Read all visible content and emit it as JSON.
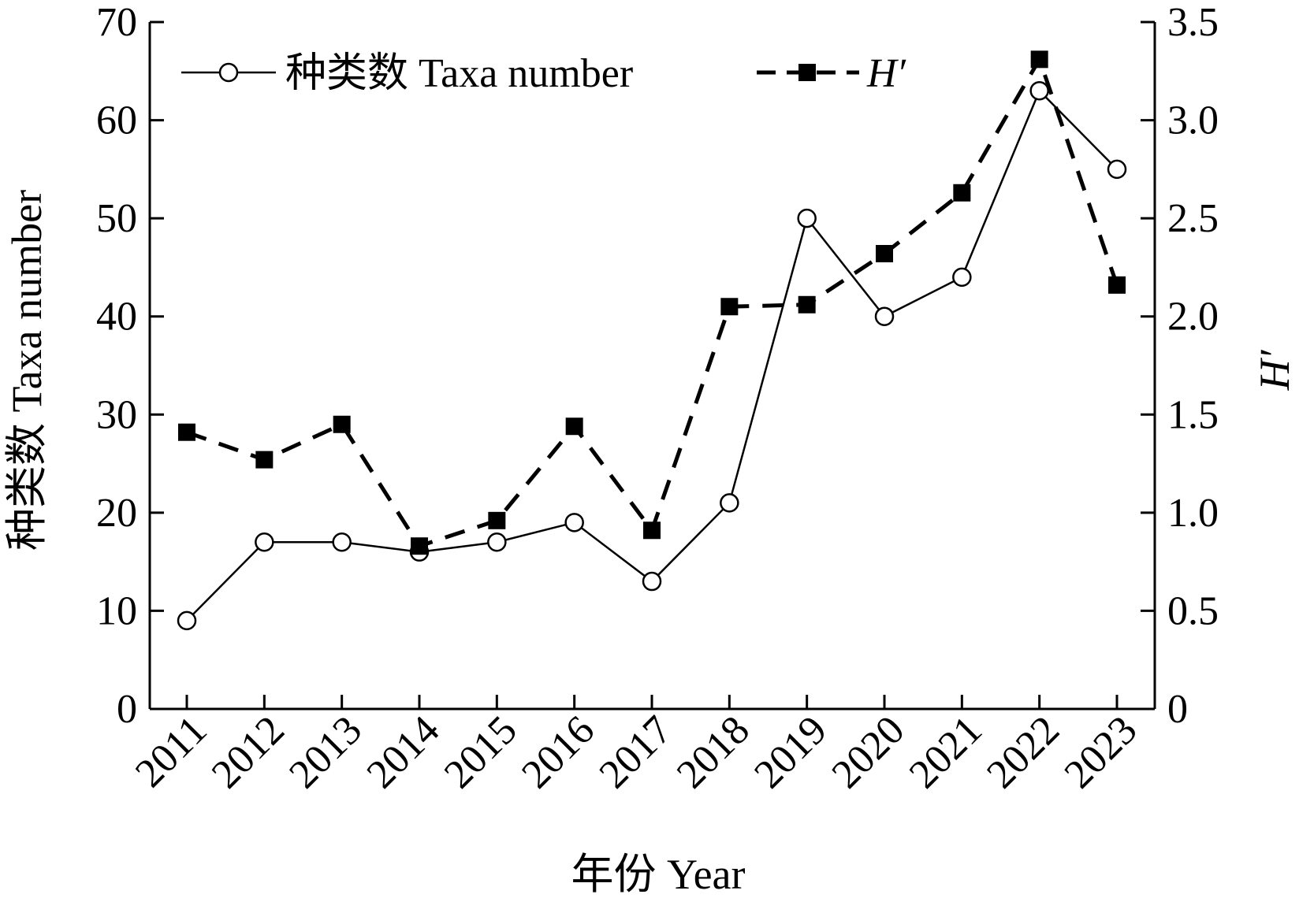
{
  "chart_data": {
    "type": "line",
    "x": [
      "2011",
      "2012",
      "2013",
      "2014",
      "2015",
      "2016",
      "2017",
      "2018",
      "2019",
      "2020",
      "2021",
      "2022",
      "2023"
    ],
    "series": [
      {
        "name": "种类数 Taxa number",
        "axis": "left",
        "style": "solid-line-open-circle",
        "values": [
          9,
          17,
          17,
          16,
          17,
          19,
          13,
          21,
          50,
          40,
          44,
          63,
          55
        ]
      },
      {
        "name": "H′",
        "axis": "right",
        "style": "dashed-line-filled-square",
        "values": [
          1.41,
          1.27,
          1.45,
          0.83,
          0.96,
          1.44,
          0.91,
          2.05,
          2.06,
          2.32,
          2.63,
          3.31,
          2.16
        ]
      }
    ],
    "xlabel": "年份 Year",
    "ylabel": "种类数 Taxa number",
    "y2label": "H′",
    "ylim": [
      0,
      70
    ],
    "y2lim": [
      0,
      3.5
    ],
    "yticks": [
      "0",
      "10",
      "20",
      "30",
      "40",
      "50",
      "60",
      "70"
    ],
    "y2ticks": [
      "0",
      "0.5",
      "1.0",
      "1.5",
      "2.0",
      "2.5",
      "3.0",
      "3.5"
    ],
    "grid": false,
    "legend": "top-left",
    "colors": {
      "line": "#000000",
      "marker_fill_open": "#ffffff",
      "marker_fill_solid": "#000000"
    }
  }
}
